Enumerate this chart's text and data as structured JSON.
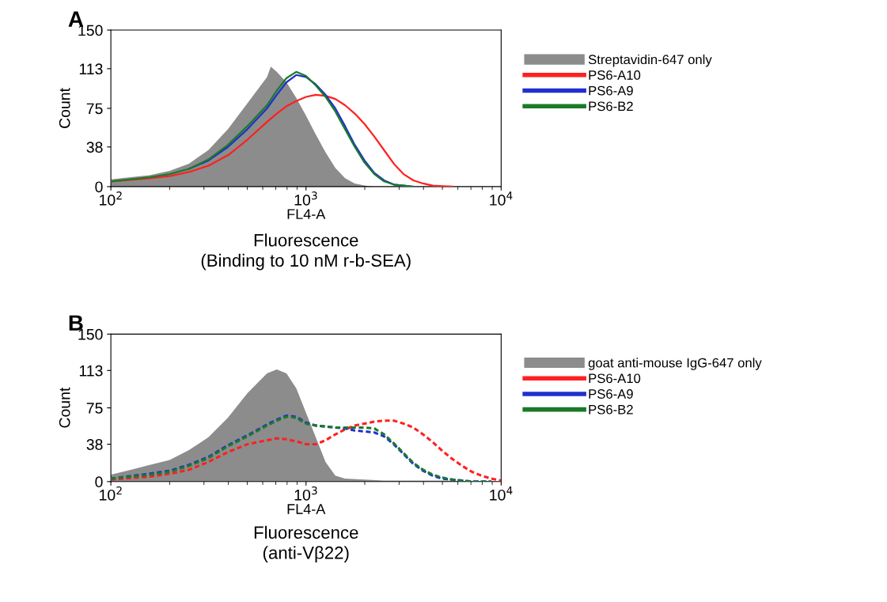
{
  "chart_data": [
    {
      "type": "area",
      "title": "A",
      "xlabel": "FL4-A",
      "ylabel": "Count",
      "annotations": [
        "Fluorescence\n(Binding to 10 nM r-b-SEA)"
      ],
      "log": "x",
      "legend": "right",
      "grid": false,
      "xlim": [
        100,
        10000
      ],
      "xticks": [
        {
          "value": 100,
          "label": "10$^{2}$"
        },
        {
          "value": 1000,
          "label": "10$^{3}$"
        },
        {
          "value": 10000,
          "label": "10$^{4}$"
        }
      ],
      "ylim": [
        0,
        150
      ],
      "yticks": [
        0,
        38,
        75,
        113,
        150
      ],
      "series": [
        {
          "name": "Streptavidin-647 only",
          "color": "#8c8c8c",
          "x": [
            100,
            126,
            158,
            200,
            251,
            316,
            398,
            501,
            631,
            660,
            708,
            794,
            891,
            1000,
            1122,
            1259,
            1413,
            1585,
            1778,
            1995,
            2239,
            10000
          ],
          "values": [
            7,
            9,
            11,
            15,
            22,
            35,
            55,
            80,
            105,
            115,
            110,
            100,
            85,
            68,
            50,
            33,
            18,
            8,
            3,
            1,
            0,
            0
          ]
        },
        {
          "name": "PS6-A10",
          "type": "line",
          "color": "#ff2020",
          "line_style": "solid",
          "x": [
            100,
            158,
            200,
            251,
            316,
            398,
            501,
            631,
            708,
            794,
            891,
            1000,
            1122,
            1259,
            1413,
            1585,
            1778,
            1995,
            2239,
            2512,
            2818,
            3162,
            3548,
            3981,
            4467,
            5012,
            5623
          ],
          "values": [
            5,
            8,
            10,
            14,
            20,
            30,
            45,
            62,
            70,
            77,
            82,
            86,
            88,
            87,
            84,
            78,
            70,
            60,
            48,
            35,
            22,
            12,
            6,
            3,
            1,
            0.5,
            0
          ]
        },
        {
          "name": "PS6-A9",
          "type": "line",
          "color": "#1f2fd0",
          "line_style": "solid",
          "x": [
            251,
            316,
            398,
            501,
            631,
            708,
            794,
            891,
            1000,
            1122,
            1259,
            1413,
            1585,
            1778,
            1995,
            2239,
            2512,
            2818,
            3162,
            3548
          ],
          "values": [
            17,
            25,
            38,
            55,
            75,
            88,
            100,
            107,
            105,
            98,
            88,
            75,
            58,
            40,
            25,
            13,
            6,
            2,
            1,
            0
          ]
        },
        {
          "name": "PS6-B2",
          "type": "line",
          "color": "#1a7a2a",
          "line_style": "solid",
          "x": [
            100,
            158,
            200,
            251,
            316,
            398,
            501,
            631,
            708,
            794,
            891,
            1000,
            1122,
            1259,
            1413,
            1585,
            1778,
            1995,
            2239,
            2512,
            2818,
            3162,
            3548
          ],
          "values": [
            5,
            9,
            12,
            17,
            26,
            40,
            58,
            78,
            92,
            104,
            110,
            106,
            97,
            86,
            72,
            55,
            38,
            23,
            12,
            5,
            2,
            1,
            0
          ]
        }
      ]
    },
    {
      "type": "area",
      "title": "B",
      "xlabel": "FL4-A",
      "ylabel": "Count",
      "annotations": [
        "Fluorescence\n(anti-Vβ22)"
      ],
      "log": "x",
      "legend": "right",
      "grid": false,
      "xlim": [
        100,
        10000
      ],
      "xticks": [
        {
          "value": 100,
          "label": "10$^{2}$"
        },
        {
          "value": 1000,
          "label": "10$^{3}$"
        },
        {
          "value": 10000,
          "label": "10$^{4}$"
        }
      ],
      "ylim": [
        0,
        150
      ],
      "yticks": [
        0,
        38,
        75,
        113,
        150
      ],
      "series": [
        {
          "name": "goat anti-mouse IgG-647 only",
          "color": "#8c8c8c",
          "x": [
            100,
            126,
            158,
            200,
            251,
            316,
            398,
            501,
            631,
            708,
            794,
            891,
            1000,
            1122,
            1259,
            1413,
            1585,
            1995,
            2512,
            3162,
            5012,
            10000
          ],
          "values": [
            7,
            12,
            17,
            22,
            32,
            45,
            65,
            90,
            110,
            114,
            110,
            95,
            70,
            45,
            20,
            6,
            3,
            2,
            1,
            1,
            1,
            0
          ]
        },
        {
          "name": "PS6-A10",
          "type": "line",
          "color": "#ff2020",
          "line_style": "dashed",
          "x": [
            100,
            158,
            200,
            251,
            316,
            398,
            501,
            631,
            708,
            794,
            891,
            1000,
            1122,
            1259,
            1413,
            1585,
            1778,
            1995,
            2239,
            2512,
            2818,
            3162,
            3548,
            3981,
            4467,
            5012,
            5623,
            6310,
            7079,
            7943,
            8913,
            10000
          ],
          "values": [
            2,
            5,
            8,
            12,
            20,
            30,
            38,
            42,
            44,
            43,
            41,
            38,
            38,
            42,
            48,
            53,
            57,
            59,
            61,
            62,
            62,
            59,
            55,
            48,
            40,
            31,
            23,
            16,
            10,
            6,
            3,
            1
          ]
        },
        {
          "name": "PS6-A9",
          "type": "line",
          "color": "#1f2fd0",
          "line_style": "dashed",
          "x": [
            100,
            158,
            200,
            251,
            316,
            398,
            501,
            631,
            708,
            794,
            891,
            1000,
            1122,
            1259,
            1413,
            1585,
            1778,
            1995,
            2239,
            2512,
            2818,
            3162,
            3548,
            3981,
            4467,
            5012,
            5623,
            6310,
            7079,
            8913
          ],
          "values": [
            3,
            8,
            11,
            17,
            25,
            37,
            47,
            58,
            63,
            67,
            66,
            60,
            57,
            56,
            55,
            54,
            52,
            51,
            50,
            46,
            38,
            28,
            18,
            11,
            6,
            3,
            2,
            1,
            0,
            0
          ]
        },
        {
          "name": "PS6-B2",
          "type": "line",
          "color": "#1a7a2a",
          "line_style": "dashed",
          "x": [
            100,
            158,
            200,
            251,
            316,
            398,
            501,
            631,
            708,
            794,
            891,
            1000,
            1122,
            1259,
            1413,
            1585,
            1778,
            1995,
            2239,
            2512,
            2818,
            3162,
            3548,
            3981,
            4467,
            5012,
            5623,
            6310,
            7079,
            8913
          ],
          "values": [
            3,
            7,
            10,
            16,
            24,
            36,
            46,
            57,
            62,
            66,
            65,
            59,
            57,
            56,
            55,
            55,
            55,
            55,
            54,
            48,
            39,
            29,
            19,
            12,
            7,
            4,
            2,
            1,
            0,
            0
          ]
        }
      ]
    }
  ]
}
